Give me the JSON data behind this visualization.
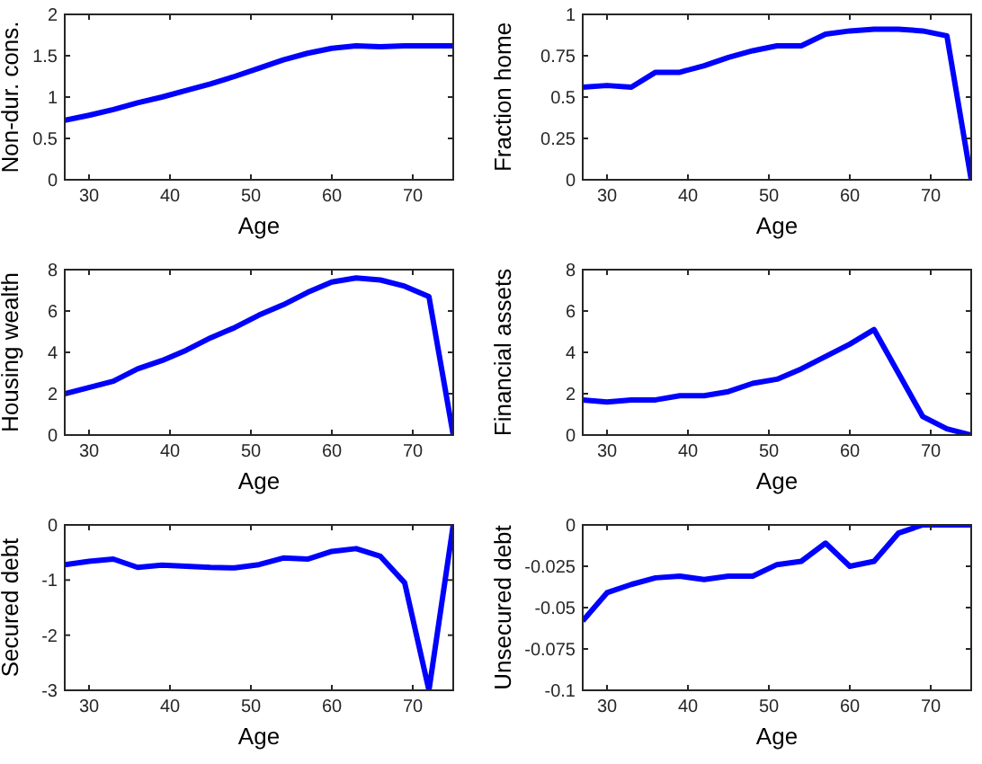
{
  "chart_data": [
    {
      "type": "line",
      "xlabel": "Age",
      "ylabel": "Non-dur. cons.",
      "x": [
        27,
        30,
        33,
        36,
        39,
        42,
        45,
        48,
        51,
        54,
        57,
        60,
        63,
        66,
        69,
        72,
        75
      ],
      "series": [
        {
          "color": "#0000ff",
          "values": [
            0.72,
            0.78,
            0.85,
            0.93,
            1.0,
            1.08,
            1.16,
            1.25,
            1.35,
            1.45,
            1.53,
            1.59,
            1.62,
            1.61,
            1.62,
            1.62,
            1.62
          ]
        }
      ],
      "xlim": [
        27,
        75
      ],
      "xticks": [
        30,
        40,
        50,
        60,
        70
      ],
      "ylim": [
        0,
        2
      ],
      "yticks": [
        0,
        0.5,
        1,
        1.5,
        2
      ]
    },
    {
      "type": "line",
      "xlabel": "Age",
      "ylabel": "Fraction home",
      "x": [
        27,
        30,
        33,
        36,
        39,
        42,
        45,
        48,
        51,
        54,
        57,
        60,
        63,
        66,
        69,
        72,
        75
      ],
      "series": [
        {
          "color": "#0000ff",
          "values": [
            0.56,
            0.57,
            0.56,
            0.65,
            0.65,
            0.69,
            0.74,
            0.78,
            0.81,
            0.81,
            0.88,
            0.9,
            0.91,
            0.91,
            0.9,
            0.87,
            0
          ]
        }
      ],
      "xlim": [
        27,
        75
      ],
      "xticks": [
        30,
        40,
        50,
        60,
        70
      ],
      "ylim": [
        0,
        1
      ],
      "yticks": [
        0,
        0.25,
        0.5,
        0.75,
        1
      ]
    },
    {
      "type": "line",
      "xlabel": "Age",
      "ylabel": "Housing wealth",
      "x": [
        27,
        30,
        33,
        36,
        39,
        42,
        45,
        48,
        51,
        54,
        57,
        60,
        63,
        66,
        69,
        72,
        75
      ],
      "series": [
        {
          "color": "#0000ff",
          "values": [
            2.0,
            2.3,
            2.6,
            3.2,
            3.6,
            4.1,
            4.7,
            5.2,
            5.8,
            6.3,
            6.9,
            7.4,
            7.6,
            7.5,
            7.2,
            6.7,
            0
          ]
        }
      ],
      "xlim": [
        27,
        75
      ],
      "xticks": [
        30,
        40,
        50,
        60,
        70
      ],
      "ylim": [
        0,
        8
      ],
      "yticks": [
        0,
        2,
        4,
        6,
        8
      ]
    },
    {
      "type": "line",
      "xlabel": "Age",
      "ylabel": "Financial assets",
      "x": [
        27,
        30,
        33,
        36,
        39,
        42,
        45,
        48,
        51,
        54,
        57,
        60,
        63,
        66,
        69,
        72,
        75
      ],
      "series": [
        {
          "color": "#0000ff",
          "values": [
            1.7,
            1.6,
            1.7,
            1.7,
            1.9,
            1.9,
            2.1,
            2.5,
            2.7,
            3.2,
            3.8,
            4.4,
            5.1,
            3.0,
            0.9,
            0.3,
            0
          ]
        }
      ],
      "xlim": [
        27,
        75
      ],
      "xticks": [
        30,
        40,
        50,
        60,
        70
      ],
      "ylim": [
        0,
        8
      ],
      "yticks": [
        0,
        2,
        4,
        6,
        8
      ]
    },
    {
      "type": "line",
      "xlabel": "Age",
      "ylabel": "Secured debt",
      "x": [
        27,
        30,
        33,
        36,
        39,
        42,
        45,
        48,
        51,
        54,
        57,
        60,
        63,
        66,
        69,
        72,
        75
      ],
      "series": [
        {
          "color": "#0000ff",
          "values": [
            -0.72,
            -0.66,
            -0.62,
            -0.77,
            -0.73,
            -0.75,
            -0.77,
            -0.78,
            -0.72,
            -0.6,
            -0.62,
            -0.48,
            -0.43,
            -0.57,
            -1.05,
            -3.0,
            0
          ]
        }
      ],
      "xlim": [
        27,
        75
      ],
      "xticks": [
        30,
        40,
        50,
        60,
        70
      ],
      "ylim": [
        -3,
        0
      ],
      "yticks": [
        -3,
        -2,
        -1,
        0
      ]
    },
    {
      "type": "line",
      "xlabel": "Age",
      "ylabel": "Unsecured debt",
      "x": [
        27,
        30,
        33,
        36,
        39,
        42,
        45,
        48,
        51,
        54,
        57,
        60,
        63,
        66,
        69,
        72,
        75
      ],
      "series": [
        {
          "color": "#0000ff",
          "values": [
            -0.058,
            -0.041,
            -0.036,
            -0.032,
            -0.031,
            -0.033,
            -0.031,
            -0.031,
            -0.024,
            -0.022,
            -0.011,
            -0.025,
            -0.022,
            -0.005,
            0,
            0,
            0
          ]
        }
      ],
      "xlim": [
        27,
        75
      ],
      "xticks": [
        30,
        40,
        50,
        60,
        70
      ],
      "ylim": [
        -0.1,
        0
      ],
      "yticks": [
        -0.1,
        -0.075,
        -0.05,
        -0.025,
        0
      ]
    }
  ]
}
